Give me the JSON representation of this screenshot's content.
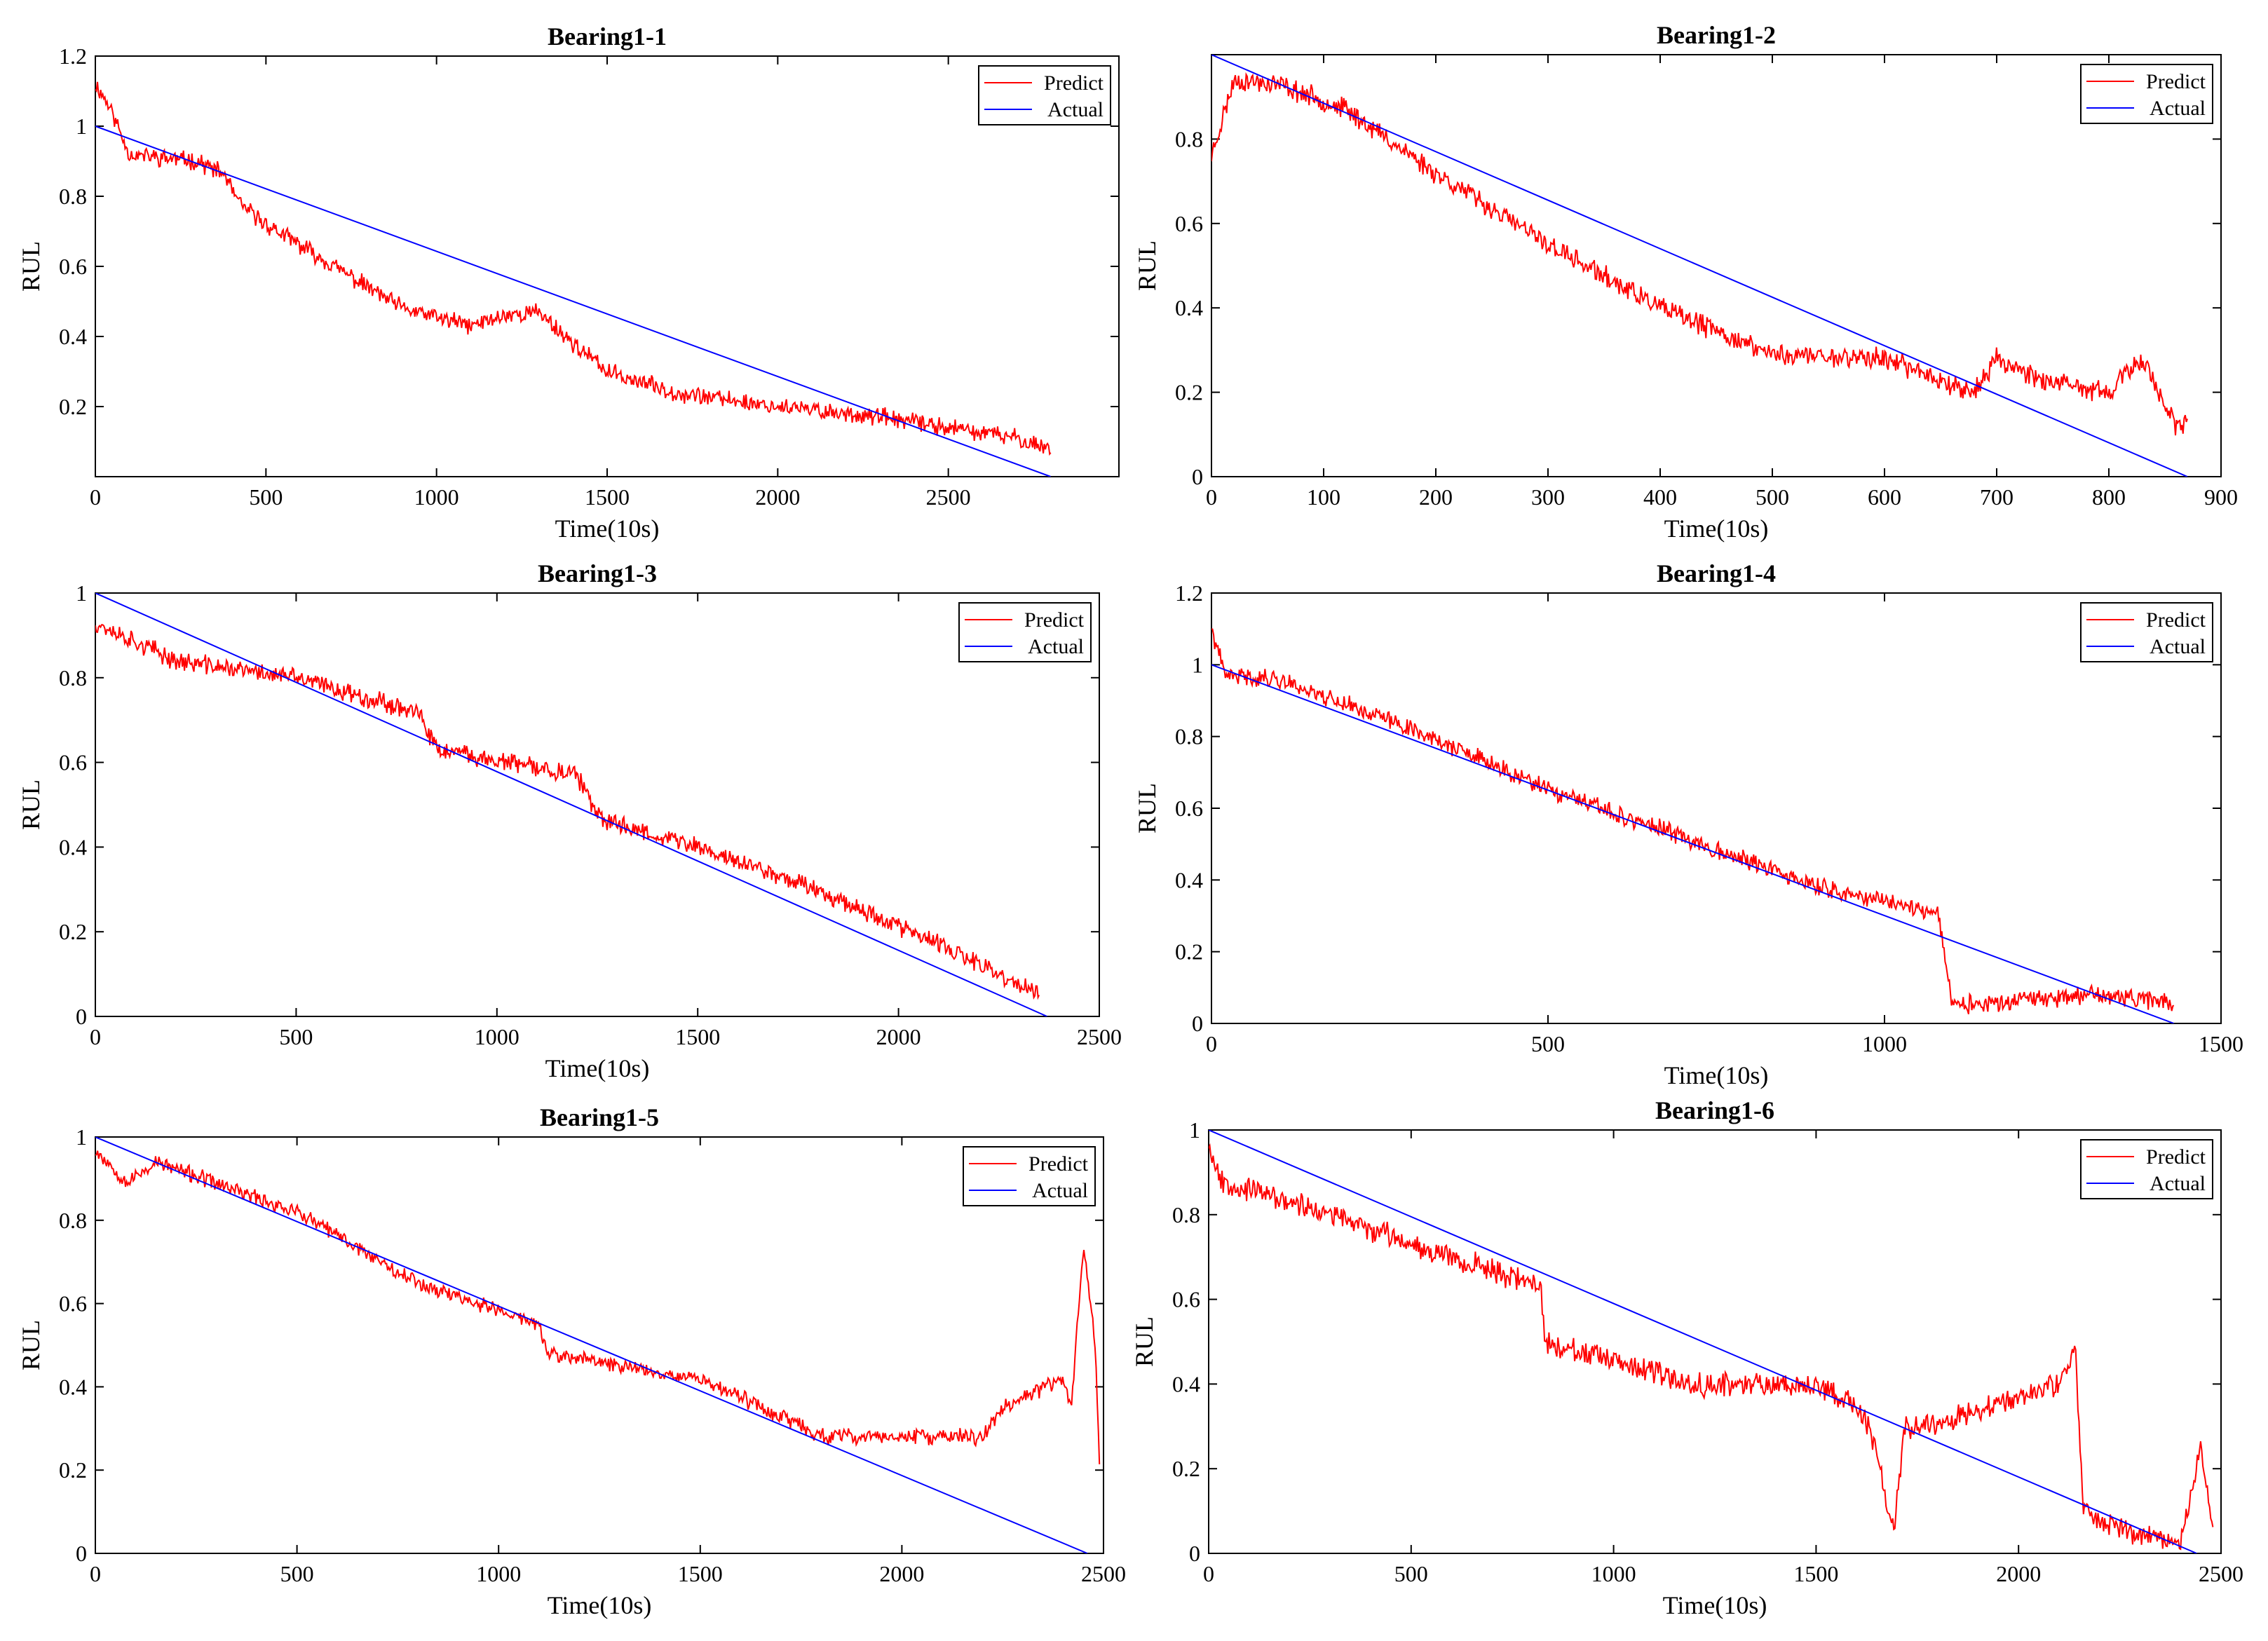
{
  "figure": {
    "description": "RUL prediction results for bearings"
  },
  "chart_data": [
    {
      "type": "line",
      "title": "Bearing1-1",
      "xlabel": "Time(10s)",
      "ylabel": "RUL",
      "xlim": [
        0,
        3000
      ],
      "ylim": [
        0,
        1.2
      ],
      "xticks": [
        0,
        500,
        1000,
        1500,
        2000,
        2500
      ],
      "yticks": [
        0.2,
        0.4,
        0.6,
        0.8,
        1,
        1.2
      ],
      "legend": {
        "position": "top-right",
        "entries": [
          "Predict",
          "Actual"
        ]
      },
      "series": [
        {
          "name": "Predict",
          "color": "#ff0000",
          "noise": 0.02,
          "seed": 11,
          "points": [
            [
              0,
              1.12
            ],
            [
              40,
              1.06
            ],
            [
              100,
              0.92
            ],
            [
              200,
              0.91
            ],
            [
              300,
              0.9
            ],
            [
              380,
              0.86
            ],
            [
              420,
              0.78
            ],
            [
              500,
              0.72
            ],
            [
              700,
              0.6
            ],
            [
              900,
              0.48
            ],
            [
              1100,
              0.43
            ],
            [
              1200,
              0.46
            ],
            [
              1300,
              0.47
            ],
            [
              1400,
              0.38
            ],
            [
              1500,
              0.3
            ],
            [
              1700,
              0.24
            ],
            [
              2000,
              0.2
            ],
            [
              2300,
              0.17
            ],
            [
              2500,
              0.14
            ],
            [
              2700,
              0.11
            ],
            [
              2800,
              0.08
            ]
          ]
        },
        {
          "name": "Actual",
          "color": "#0000ff",
          "points": [
            [
              0,
              1
            ],
            [
              2800,
              0
            ]
          ]
        }
      ]
    },
    {
      "type": "line",
      "title": "Bearing1-2",
      "xlabel": "Time(10s)",
      "ylabel": "RUL",
      "xlim": [
        0,
        900
      ],
      "ylim": [
        0,
        1
      ],
      "xticks": [
        0,
        100,
        200,
        300,
        400,
        500,
        600,
        700,
        800,
        900
      ],
      "yticks": [
        0,
        0.2,
        0.4,
        0.6,
        0.8
      ],
      "legend": {
        "position": "top-right",
        "entries": [
          "Predict",
          "Actual"
        ]
      },
      "series": [
        {
          "name": "Predict",
          "color": "#ff0000",
          "noise": 0.02,
          "seed": 23,
          "points": [
            [
              0,
              0.76
            ],
            [
              20,
              0.94
            ],
            [
              60,
              0.93
            ],
            [
              120,
              0.87
            ],
            [
              200,
              0.72
            ],
            [
              300,
              0.55
            ],
            [
              400,
              0.4
            ],
            [
              500,
              0.29
            ],
            [
              600,
              0.28
            ],
            [
              680,
              0.2
            ],
            [
              700,
              0.28
            ],
            [
              750,
              0.22
            ],
            [
              800,
              0.2
            ],
            [
              830,
              0.28
            ],
            [
              860,
              0.12
            ],
            [
              870,
              0.12
            ]
          ]
        },
        {
          "name": "Actual",
          "color": "#0000ff",
          "points": [
            [
              0,
              1
            ],
            [
              870,
              0
            ]
          ]
        }
      ]
    },
    {
      "type": "line",
      "title": "Bearing1-3",
      "xlabel": "Time(10s)",
      "ylabel": "RUL",
      "xlim": [
        0,
        2500
      ],
      "ylim": [
        0,
        1
      ],
      "xticks": [
        0,
        500,
        1000,
        1500,
        2000,
        2500
      ],
      "yticks": [
        0,
        0.2,
        0.4,
        0.6,
        0.8,
        1
      ],
      "legend": {
        "position": "top-right",
        "entries": [
          "Predict",
          "Actual"
        ]
      },
      "series": [
        {
          "name": "Predict",
          "color": "#ff0000",
          "noise": 0.018,
          "seed": 37,
          "points": [
            [
              0,
              0.93
            ],
            [
              200,
              0.84
            ],
            [
              500,
              0.8
            ],
            [
              800,
              0.72
            ],
            [
              850,
              0.63
            ],
            [
              1200,
              0.57
            ],
            [
              1250,
              0.47
            ],
            [
              1500,
              0.4
            ],
            [
              1800,
              0.3
            ],
            [
              2100,
              0.17
            ],
            [
              2350,
              0.05
            ]
          ]
        },
        {
          "name": "Actual",
          "color": "#0000ff",
          "points": [
            [
              0,
              1
            ],
            [
              2370,
              0
            ]
          ]
        }
      ]
    },
    {
      "type": "line",
      "title": "Bearing1-4",
      "xlabel": "Time(10s)",
      "ylabel": "RUL",
      "xlim": [
        0,
        1500
      ],
      "ylim": [
        0,
        1.2
      ],
      "xticks": [
        0,
        500,
        1000,
        1500
      ],
      "yticks": [
        0,
        0.2,
        0.4,
        0.6,
        0.8,
        1,
        1.2
      ],
      "legend": {
        "position": "top-right",
        "entries": [
          "Predict",
          "Actual"
        ]
      },
      "series": [
        {
          "name": "Predict",
          "color": "#ff0000",
          "noise": 0.02,
          "seed": 41,
          "points": [
            [
              0,
              1.1
            ],
            [
              20,
              0.97
            ],
            [
              100,
              0.96
            ],
            [
              300,
              0.82
            ],
            [
              500,
              0.65
            ],
            [
              700,
              0.52
            ],
            [
              900,
              0.38
            ],
            [
              1080,
              0.31
            ],
            [
              1100,
              0.05
            ],
            [
              1200,
              0.06
            ],
            [
              1300,
              0.08
            ],
            [
              1430,
              0.06
            ]
          ]
        },
        {
          "name": "Actual",
          "color": "#0000ff",
          "points": [
            [
              0,
              1
            ],
            [
              1430,
              0
            ]
          ]
        }
      ]
    },
    {
      "type": "line",
      "title": "Bearing1-5",
      "xlabel": "Time(10s)",
      "ylabel": "RUL",
      "xlim": [
        0,
        2500
      ],
      "ylim": [
        0,
        1
      ],
      "xticks": [
        0,
        500,
        1000,
        1500,
        2000,
        2500
      ],
      "yticks": [
        0,
        0.2,
        0.4,
        0.6,
        0.8,
        1
      ],
      "legend": {
        "position": "top-right",
        "entries": [
          "Predict",
          "Actual"
        ]
      },
      "series": [
        {
          "name": "Predict",
          "color": "#ff0000",
          "noise": 0.015,
          "seed": 53,
          "points": [
            [
              0,
              0.97
            ],
            [
              80,
              0.89
            ],
            [
              150,
              0.94
            ],
            [
              500,
              0.82
            ],
            [
              800,
              0.65
            ],
            [
              1100,
              0.55
            ],
            [
              1120,
              0.48
            ],
            [
              1500,
              0.42
            ],
            [
              1700,
              0.33
            ],
            [
              1800,
              0.28
            ],
            [
              2200,
              0.28
            ],
            [
              2250,
              0.35
            ],
            [
              2400,
              0.42
            ],
            [
              2420,
              0.35
            ],
            [
              2450,
              0.74
            ],
            [
              2480,
              0.5
            ],
            [
              2490,
              0.2
            ]
          ]
        },
        {
          "name": "Actual",
          "color": "#0000ff",
          "points": [
            [
              0,
              1
            ],
            [
              2460,
              0
            ]
          ]
        }
      ]
    },
    {
      "type": "line",
      "title": "Bearing1-6",
      "xlabel": "Time(10s)",
      "ylabel": "RUL",
      "xlim": [
        0,
        2500
      ],
      "ylim": [
        0,
        1
      ],
      "xticks": [
        0,
        500,
        1000,
        1500,
        2000,
        2500
      ],
      "yticks": [
        0,
        0.2,
        0.4,
        0.6,
        0.8,
        1
      ],
      "legend": {
        "position": "top-right",
        "entries": [
          "Predict",
          "Actual"
        ]
      },
      "series": [
        {
          "name": "Predict",
          "color": "#ff0000",
          "noise": 0.022,
          "seed": 67,
          "points": [
            [
              0,
              0.97
            ],
            [
              30,
              0.88
            ],
            [
              300,
              0.8
            ],
            [
              600,
              0.7
            ],
            [
              820,
              0.63
            ],
            [
              830,
              0.5
            ],
            [
              1000,
              0.45
            ],
            [
              1200,
              0.4
            ],
            [
              1500,
              0.4
            ],
            [
              1600,
              0.35
            ],
            [
              1650,
              0.25
            ],
            [
              1690,
              0.05
            ],
            [
              1720,
              0.3
            ],
            [
              1850,
              0.32
            ],
            [
              2100,
              0.4
            ],
            [
              2140,
              0.48
            ],
            [
              2160,
              0.1
            ],
            [
              2300,
              0.04
            ],
            [
              2400,
              0.03
            ],
            [
              2450,
              0.25
            ],
            [
              2480,
              0.06
            ]
          ]
        },
        {
          "name": "Actual",
          "color": "#0000ff",
          "points": [
            [
              0,
              1
            ],
            [
              2440,
              0
            ]
          ]
        }
      ]
    }
  ]
}
